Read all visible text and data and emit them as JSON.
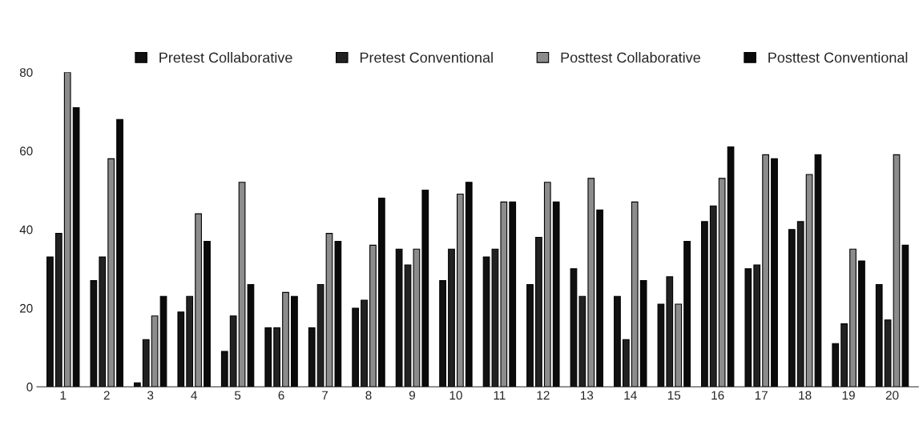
{
  "chart_data": {
    "type": "bar",
    "categories": [
      "1",
      "2",
      "3",
      "4",
      "5",
      "6",
      "7",
      "8",
      "9",
      "10",
      "11",
      "12",
      "13",
      "14",
      "15",
      "16",
      "17",
      "18",
      "19",
      "20"
    ],
    "series": [
      {
        "name": "Pretest Collaborative",
        "color": "#111111",
        "values": [
          33,
          27,
          1,
          19,
          9,
          15,
          15,
          20,
          35,
          27,
          33,
          26,
          30,
          23,
          21,
          42,
          30,
          40,
          11,
          26
        ]
      },
      {
        "name": "Pretest Conventional",
        "color": "#222222",
        "values": [
          39,
          33,
          12,
          23,
          18,
          15,
          26,
          22,
          31,
          35,
          35,
          38,
          23,
          12,
          28,
          46,
          31,
          42,
          16,
          17
        ]
      },
      {
        "name": "Posttest Collaborative",
        "color": "#8c8c8c",
        "values": [
          80,
          58,
          18,
          44,
          52,
          24,
          39,
          36,
          35,
          49,
          47,
          52,
          53,
          47,
          21,
          53,
          59,
          54,
          35,
          59
        ]
      },
      {
        "name": "Posttest Conventional",
        "color": "#0a0a0a",
        "values": [
          71,
          68,
          23,
          37,
          26,
          23,
          37,
          48,
          50,
          52,
          47,
          47,
          45,
          27,
          37,
          61,
          58,
          59,
          32,
          36
        ]
      }
    ],
    "ylim": [
      0,
      80
    ],
    "yticks": [
      0,
      20,
      40,
      60,
      80
    ],
    "grid": false,
    "legend": "top"
  }
}
